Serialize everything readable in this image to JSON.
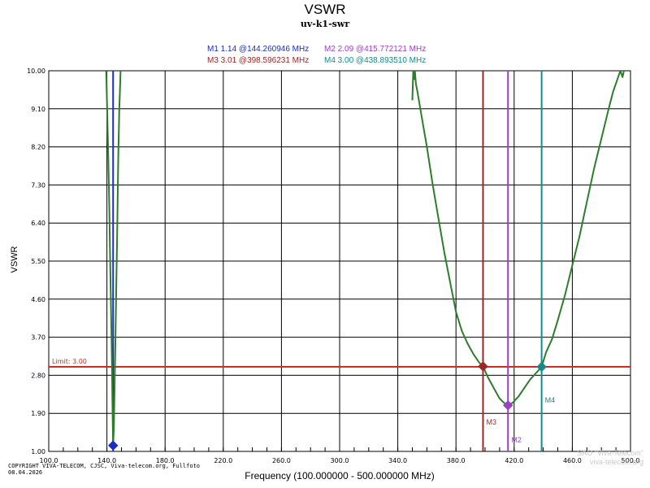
{
  "chart_data": {
    "type": "line",
    "title": "VSWR",
    "subtitle": "uv-k1-swr",
    "xlabel": "Frequency (100.000000 - 500.000000 MHz)",
    "ylabel": "VSWR",
    "xlim": [
      100,
      500
    ],
    "ylim": [
      1.0,
      10.0
    ],
    "grid": true,
    "x_ticks": [
      "100.0",
      "140.0",
      "180.0",
      "220.0",
      "260.0",
      "300.0",
      "340.0",
      "380.0",
      "420.0",
      "460.0",
      "500.0"
    ],
    "y_ticks": [
      "1.00",
      "1.90",
      "2.80",
      "3.70",
      "4.60",
      "5.50",
      "6.40",
      "7.30",
      "8.20",
      "9.10",
      "10.00"
    ],
    "limit": {
      "label": "Limit: 3.00",
      "value": 3.0,
      "color": "#d42a20"
    },
    "series": [
      {
        "color": "#2e7d2e",
        "segments": [
          {
            "x": [
              139.5,
              140.2,
              140.9,
              141.6,
              142.2,
              142.8,
              143.4,
              143.8,
              144.26,
              144.8,
              145.3,
              145.9,
              146.5,
              147.0,
              147.3,
              147.6,
              147.9,
              148.2,
              148.5,
              148.8,
              149.1,
              149.4
            ],
            "y": [
              10.0,
              9.0,
              8.0,
              6.8,
              5.6,
              4.4,
              3.2,
              2.1,
              1.14,
              1.6,
              2.6,
              3.8,
              5.0,
              6.0,
              6.8,
              7.5,
              8.1,
              8.6,
              9.1,
              9.4,
              9.7,
              10.0
            ]
          },
          {
            "x": [
              350.0,
              350.6,
              351.2,
              351.8,
              352.4,
              353.5,
              356.0,
              360.0,
              364.0,
              368.0,
              372.0,
              376.0,
              380.0,
              384.0,
              388.0,
              392.0,
              396.0,
              398.6,
              402.0,
              406.0,
              410.0,
              413.0,
              415.77,
              419.0,
              423.0,
              427.0,
              431.0,
              435.0,
              438.89,
              442.0,
              446.0,
              450.0,
              455.0,
              460.0,
              465.0,
              470.0,
              475.0,
              480.0,
              485.0,
              488.0,
              491.0,
              493.0,
              494.5,
              495.5
            ],
            "y": [
              9.3,
              10.0,
              9.8,
              10.0,
              9.7,
              9.5,
              9.0,
              8.2,
              7.3,
              6.5,
              5.7,
              5.0,
              4.3,
              3.85,
              3.55,
              3.3,
              3.1,
              3.01,
              2.75,
              2.5,
              2.25,
              2.15,
              2.09,
              2.15,
              2.3,
              2.5,
              2.7,
              2.85,
              3.0,
              3.35,
              3.65,
              4.1,
              4.7,
              5.4,
              6.1,
              6.9,
              7.7,
              8.4,
              9.1,
              9.5,
              9.8,
              10.0,
              9.85,
              10.0
            ]
          }
        ]
      }
    ],
    "markers": [
      {
        "id": "M1",
        "value": "1.14",
        "freq": "144.260946",
        "x": 144.260946,
        "y": 1.14,
        "color": "#1a2ec0",
        "label_pos": "none"
      },
      {
        "id": "M2",
        "value": "2.09",
        "freq": "415.772121",
        "x": 415.772121,
        "y": 2.09,
        "color": "#9b3fc9",
        "label_pos": "bottom"
      },
      {
        "id": "M3",
        "value": "3.01",
        "freq": "398.596231",
        "x": 398.596231,
        "y": 3.01,
        "color": "#9e2626",
        "label_pos": "bottom"
      },
      {
        "id": "M4",
        "value": "3.00",
        "freq": "438.893510",
        "x": 438.89351,
        "y": 3.0,
        "color": "#178a8a",
        "label_pos": "middle"
      }
    ],
    "unit": "MHz"
  },
  "copyright": "COPYRIGHT VIVA-TELECOM, CJSC, Viva-telecom.org, Fullfoto\n08.04.2026",
  "watermark": "SAO \"Viva-Telecom\"\nviva-telecom.org"
}
